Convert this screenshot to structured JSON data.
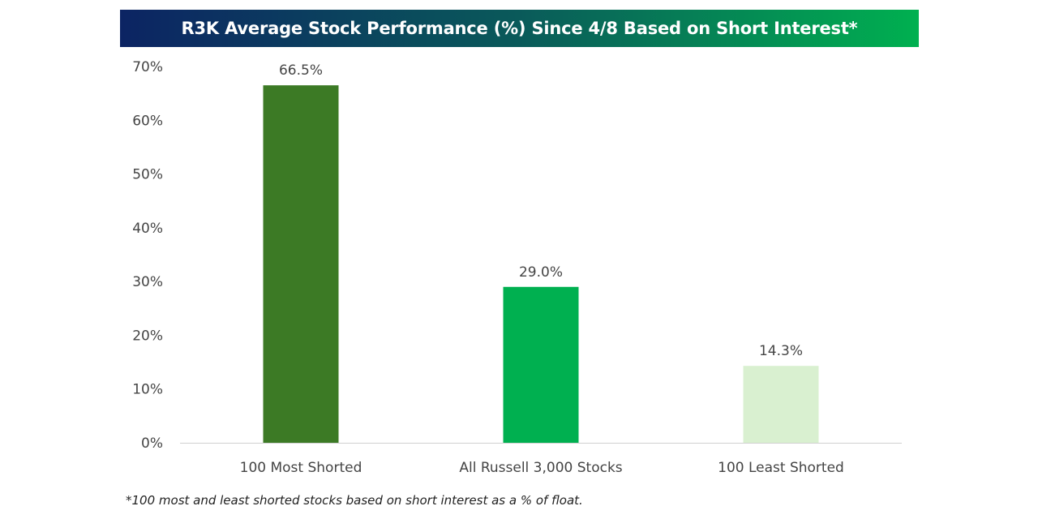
{
  "chart_data": {
    "type": "bar",
    "title": "R3K Average Stock Performance (%) Since 4/8 Based on Short Interest*",
    "categories": [
      "100 Most Shorted",
      "All Russell 3,000 Stocks",
      "100 Least Shorted"
    ],
    "values": [
      66.5,
      29.0,
      14.3
    ],
    "data_labels": [
      "66.5%",
      "29.0%",
      "14.3%"
    ],
    "colors": [
      "#3c7a25",
      "#00b050",
      "#d9f0d0"
    ],
    "ylim": [
      0,
      70
    ],
    "yticks": [
      0,
      10,
      20,
      30,
      40,
      50,
      60,
      70
    ],
    "ytick_labels": [
      "0%",
      "10%",
      "20%",
      "30%",
      "40%",
      "50%",
      "60%",
      "70%"
    ],
    "xlabel": "",
    "ylabel": "",
    "grid": false,
    "footnote": "*100 most and least shorted stocks based on short interest as a % of float."
  }
}
